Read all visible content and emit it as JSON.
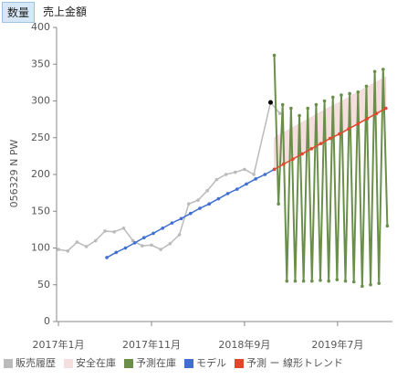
{
  "tabs": [
    "数量",
    "売上金額"
  ],
  "chart_data": {
    "type": "line",
    "y_label": "056329 N PW",
    "xlim": [
      -0.2,
      35.9
    ],
    "xticks": [
      {
        "value": 0,
        "label": "2017年1月"
      },
      {
        "value": 10,
        "label": "2017年11月"
      },
      {
        "value": 20,
        "label": "2018年9月"
      },
      {
        "value": 30,
        "label": "2019年7月"
      }
    ],
    "ylim": [
      0,
      400
    ],
    "yticks": [
      0,
      50,
      100,
      150,
      200,
      250,
      300,
      350,
      400
    ],
    "series": [
      {
        "name": "販売履歴",
        "color": "#bbbbbb",
        "x": [
          0,
          1,
          2,
          3,
          4,
          5,
          6,
          7,
          8,
          9,
          10,
          11,
          12,
          13,
          14,
          15,
          16,
          17,
          18,
          19,
          20,
          21,
          22.8,
          23.8
        ],
        "values": [
          98,
          96,
          108,
          102,
          110,
          123,
          122,
          127,
          110,
          103,
          104,
          98,
          106,
          118,
          160,
          165,
          178,
          193,
          200,
          203,
          207,
          200,
          298,
          283
        ]
      },
      {
        "name": "安全在庫",
        "color": "#f5dede",
        "x": [
          23.2,
          24.2,
          25.2,
          26.2,
          27.2,
          28.2,
          29.2,
          30.2,
          31.2,
          32.2,
          33.2,
          34.2,
          35.2
        ],
        "values": [
          250,
          257,
          264,
          271,
          278,
          285,
          292,
          298,
          305,
          312,
          319,
          326,
          333
        ]
      },
      {
        "name": "予測在庫",
        "color": "#6a8f4a",
        "x": [
          23.2,
          23.65,
          24.1,
          24.55,
          25,
          25.45,
          25.9,
          26.35,
          26.8,
          27.25,
          27.7,
          28.15,
          28.6,
          29.05,
          29.5,
          29.95,
          30.4,
          30.85,
          31.3,
          31.75,
          32.2,
          32.65,
          33.1,
          33.55,
          34,
          34.45,
          34.9,
          35.35
        ],
        "values": [
          362,
          160,
          295,
          55,
          290,
          55,
          280,
          55,
          290,
          55,
          295,
          56,
          300,
          55,
          305,
          57,
          308,
          55,
          310,
          54,
          312,
          48,
          320,
          50,
          340,
          52,
          343,
          130
        ]
      },
      {
        "name": "モデル",
        "color": "#3f6fcf",
        "x": [
          5.2,
          6.2,
          7.2,
          8.2,
          9.2,
          10.2,
          11.2,
          12.2,
          13.2,
          14.2,
          15.2,
          16.2,
          17.2,
          18.2,
          19.2,
          20.2,
          21.2,
          22.2,
          23.2
        ],
        "values": [
          87,
          94,
          100,
          107,
          114,
          120,
          127,
          134,
          140,
          147,
          154,
          160,
          167,
          174,
          180,
          187,
          194,
          200,
          207
        ]
      },
      {
        "name": "予測 ー 線形トレンド",
        "color": "#e0472b",
        "x": [
          23.2,
          24.2,
          25.2,
          26.2,
          27.2,
          28.2,
          29.2,
          30.2,
          31.2,
          32.2,
          33.2,
          34.2,
          35.2
        ],
        "values": [
          207,
          214,
          221,
          228,
          235,
          242,
          249,
          255,
          262,
          269,
          276,
          283,
          290
        ]
      }
    ],
    "marker": {
      "x": 22.8,
      "value": 298,
      "color": "#000000"
    }
  }
}
